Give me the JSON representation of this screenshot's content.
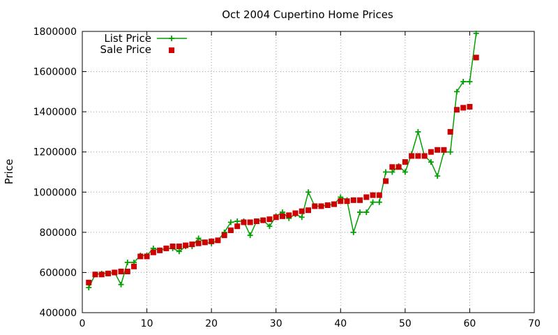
{
  "chart_data": {
    "type": "scatter",
    "title": "Oct 2004 Cupertino Home Prices",
    "xlabel": "",
    "ylabel": "Price",
    "xlim": [
      0,
      70
    ],
    "ylim": [
      400000,
      1800000
    ],
    "x_ticks": [
      0,
      10,
      20,
      30,
      40,
      50,
      60,
      70
    ],
    "y_ticks": [
      400000,
      600000,
      800000,
      1000000,
      1200000,
      1400000,
      1600000,
      1800000
    ],
    "grid": true,
    "legend_position": "top-left",
    "series": [
      {
        "name": "List Price",
        "style": "linespoints",
        "marker": "plus",
        "color": "#00a000",
        "x": [
          1,
          2,
          3,
          4,
          5,
          6,
          7,
          8,
          9,
          10,
          11,
          12,
          13,
          14,
          15,
          16,
          17,
          18,
          19,
          20,
          21,
          22,
          23,
          24,
          25,
          26,
          27,
          28,
          29,
          30,
          31,
          32,
          33,
          34,
          35,
          36,
          37,
          38,
          39,
          40,
          41,
          42,
          43,
          44,
          45,
          46,
          47,
          48,
          49,
          50,
          51,
          52,
          53,
          54,
          55,
          56,
          57,
          58,
          59,
          60,
          61
        ],
        "values": [
          525000,
          590000,
          595000,
          595000,
          600000,
          540000,
          650000,
          650000,
          685000,
          685000,
          720000,
          710000,
          720000,
          720000,
          705000,
          730000,
          730000,
          770000,
          750000,
          745000,
          760000,
          800000,
          850000,
          855000,
          855000,
          785000,
          855000,
          860000,
          830000,
          880000,
          900000,
          870000,
          890000,
          875000,
          1000000,
          930000,
          930000,
          935000,
          940000,
          975000,
          960000,
          800000,
          900000,
          900000,
          950000,
          950000,
          1100000,
          1100000,
          1130000,
          1100000,
          1190000,
          1300000,
          1180000,
          1150000,
          1080000,
          1200000,
          1200000,
          1500000,
          1550000,
          1550000,
          1790000
        ]
      },
      {
        "name": "Sale Price",
        "style": "points",
        "marker": "square",
        "color": "#cc0000",
        "x": [
          1,
          2,
          3,
          4,
          5,
          6,
          7,
          8,
          9,
          10,
          11,
          12,
          13,
          14,
          15,
          16,
          17,
          18,
          19,
          20,
          21,
          22,
          23,
          24,
          25,
          26,
          27,
          28,
          29,
          30,
          31,
          32,
          33,
          34,
          35,
          36,
          37,
          38,
          39,
          40,
          41,
          42,
          43,
          44,
          45,
          46,
          47,
          48,
          49,
          50,
          51,
          52,
          53,
          54,
          55,
          56,
          57,
          58,
          59,
          60,
          61
        ],
        "values": [
          550000,
          590000,
          590000,
          595000,
          600000,
          605000,
          605000,
          630000,
          680000,
          680000,
          700000,
          710000,
          720000,
          730000,
          730000,
          735000,
          740000,
          745000,
          750000,
          755000,
          760000,
          785000,
          810000,
          830000,
          850000,
          850000,
          855000,
          860000,
          865000,
          875000,
          880000,
          885000,
          895000,
          905000,
          910000,
          930000,
          930000,
          935000,
          940000,
          955000,
          955000,
          960000,
          960000,
          975000,
          985000,
          985000,
          1055000,
          1125000,
          1125000,
          1150000,
          1180000,
          1180000,
          1180000,
          1200000,
          1210000,
          1210000,
          1300000,
          1410000,
          1420000,
          1425000,
          1670000
        ]
      }
    ]
  }
}
